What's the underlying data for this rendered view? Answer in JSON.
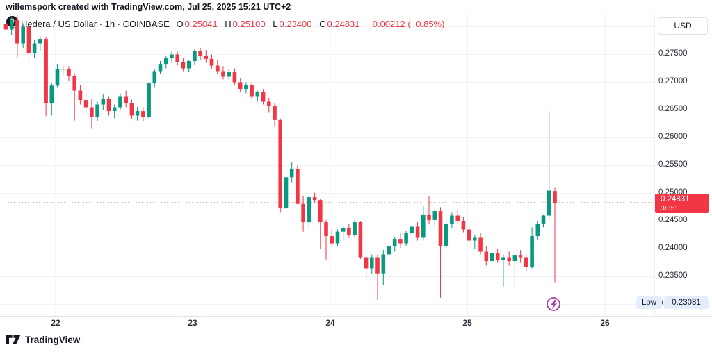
{
  "attribution": "willemspork created with TradingView.com, Jul 25, 2025 15:21 UTC+2",
  "legend": {
    "symbol_title": "Hedera / US Dollar · 1h · COINBASE",
    "ohlc": [
      {
        "label": "O",
        "value": "0.25041"
      },
      {
        "label": "H",
        "value": "0.25100"
      },
      {
        "label": "L",
        "value": "0.23400"
      },
      {
        "label": "C",
        "value": "0.24831"
      }
    ],
    "change": "−0.00212 (−0.85%)",
    "symbol_logo_glyph": "ℏ"
  },
  "price_axis": {
    "currency_label": "USD",
    "ticks": [
      "0.27500",
      "0.27000",
      "0.26500",
      "0.26000",
      "0.25500",
      "0.25000",
      "0.24500",
      "0.24000",
      "0.23500",
      "0.23000"
    ],
    "last_price_badge": {
      "price": "0.24831",
      "countdown": "38:51"
    },
    "low_marker": {
      "label": "Low",
      "value": "0.23081"
    }
  },
  "time_axis": {
    "labels": [
      "22",
      "23",
      "24",
      "25",
      "26"
    ]
  },
  "footer": {
    "logo_text": "TradingView"
  },
  "icons": {
    "flash_icon": "lightning-bolt-in-circle",
    "tv_logo": "tradingview-mark"
  },
  "colors": {
    "up": "#089981",
    "down": "#F23645",
    "badge_bg": "#F23645",
    "price_line": "#F23645",
    "grid": "#f0f2f6",
    "axis_border": "#e0e3eb",
    "axis_text": "#2a2e39",
    "low_chip_bg": "#e3edfb",
    "flash": "#AB3FAB"
  },
  "chart_data": {
    "type": "candlestick",
    "symbol": "Hedera / US Dollar",
    "interval": "1h",
    "exchange": "COINBASE",
    "title": "Hedera / US Dollar · 1h · COINBASE",
    "last_bar": {
      "open": 0.25041,
      "high": 0.251,
      "low": 0.234,
      "close": 0.24831,
      "change": -0.00212,
      "change_pct": -0.85
    },
    "current_price": 0.24831,
    "session_low": 0.23081,
    "ylim": [
      0.2285,
      0.283
    ],
    "y_ticks": [
      0.23,
      0.235,
      0.24,
      0.245,
      0.25,
      0.255,
      0.26,
      0.265,
      0.27,
      0.275,
      0.28
    ],
    "x_day_labels": [
      "22",
      "23",
      "24",
      "25",
      "26"
    ],
    "first_bar_time": "Jul 21 15:00",
    "legend_position": "top-left",
    "grid": true,
    "candles": [
      [
        0.2805,
        0.2816,
        0.279,
        0.2795
      ],
      [
        0.2795,
        0.2815,
        0.2785,
        0.2812
      ],
      [
        0.2812,
        0.282,
        0.2745,
        0.277
      ],
      [
        0.277,
        0.2806,
        0.2762,
        0.28
      ],
      [
        0.28,
        0.2806,
        0.2735,
        0.2752
      ],
      [
        0.2752,
        0.2776,
        0.2743,
        0.277
      ],
      [
        0.277,
        0.2783,
        0.2756,
        0.2778
      ],
      [
        0.2778,
        0.2782,
        0.2639,
        0.2663
      ],
      [
        0.2663,
        0.2698,
        0.264,
        0.2694
      ],
      [
        0.2694,
        0.2733,
        0.269,
        0.2723
      ],
      [
        0.2723,
        0.2731,
        0.2713,
        0.2724
      ],
      [
        0.2724,
        0.2729,
        0.2702,
        0.2711
      ],
      [
        0.2711,
        0.2716,
        0.2631,
        0.2685
      ],
      [
        0.2685,
        0.2695,
        0.266,
        0.2668
      ],
      [
        0.2668,
        0.268,
        0.2645,
        0.2655
      ],
      [
        0.2655,
        0.267,
        0.2616,
        0.2638
      ],
      [
        0.2638,
        0.2665,
        0.263,
        0.266
      ],
      [
        0.266,
        0.2678,
        0.265,
        0.267
      ],
      [
        0.267,
        0.2675,
        0.264,
        0.2648
      ],
      [
        0.2648,
        0.266,
        0.2635,
        0.2655
      ],
      [
        0.2655,
        0.268,
        0.265,
        0.2675
      ],
      [
        0.2675,
        0.2685,
        0.2655,
        0.2662
      ],
      [
        0.2662,
        0.2669,
        0.2634,
        0.264
      ],
      [
        0.264,
        0.2656,
        0.2631,
        0.2648
      ],
      [
        0.2648,
        0.2655,
        0.263,
        0.2637
      ],
      [
        0.2637,
        0.27,
        0.2635,
        0.2698
      ],
      [
        0.2698,
        0.2724,
        0.269,
        0.272
      ],
      [
        0.272,
        0.2738,
        0.2715,
        0.2733
      ],
      [
        0.2733,
        0.2748,
        0.2725,
        0.2743
      ],
      [
        0.2743,
        0.2755,
        0.2735,
        0.275
      ],
      [
        0.275,
        0.2755,
        0.273,
        0.2736
      ],
      [
        0.2736,
        0.2743,
        0.272,
        0.2725
      ],
      [
        0.2725,
        0.274,
        0.2718,
        0.2738
      ],
      [
        0.2738,
        0.276,
        0.2732,
        0.2756
      ],
      [
        0.2756,
        0.2762,
        0.274,
        0.2748
      ],
      [
        0.2748,
        0.2758,
        0.2735,
        0.2742
      ],
      [
        0.2742,
        0.275,
        0.2725,
        0.273
      ],
      [
        0.273,
        0.274,
        0.2715,
        0.272
      ],
      [
        0.272,
        0.2729,
        0.2705,
        0.271
      ],
      [
        0.271,
        0.2724,
        0.2705,
        0.2718
      ],
      [
        0.2718,
        0.2725,
        0.2695,
        0.27
      ],
      [
        0.27,
        0.2708,
        0.2682,
        0.2688
      ],
      [
        0.2688,
        0.27,
        0.268,
        0.2695
      ],
      [
        0.2695,
        0.27,
        0.267,
        0.2675
      ],
      [
        0.2675,
        0.2685,
        0.2665,
        0.2682
      ],
      [
        0.2682,
        0.2688,
        0.266,
        0.2665
      ],
      [
        0.2665,
        0.2672,
        0.2645,
        0.2658
      ],
      [
        0.2658,
        0.2662,
        0.262,
        0.2632
      ],
      [
        0.2632,
        0.2635,
        0.2465,
        0.2473
      ],
      [
        0.2473,
        0.2548,
        0.246,
        0.2529
      ],
      [
        0.2529,
        0.2556,
        0.252,
        0.2544
      ],
      [
        0.2544,
        0.255,
        0.248,
        0.2481
      ],
      [
        0.2481,
        0.2495,
        0.2431,
        0.2448
      ],
      [
        0.2448,
        0.2496,
        0.244,
        0.2493
      ],
      [
        0.2493,
        0.2501,
        0.2483,
        0.2488
      ],
      [
        0.2488,
        0.249,
        0.24,
        0.2448
      ],
      [
        0.2448,
        0.2452,
        0.2381,
        0.2423
      ],
      [
        0.2423,
        0.2435,
        0.2405,
        0.241
      ],
      [
        0.241,
        0.2435,
        0.2405,
        0.2431
      ],
      [
        0.2431,
        0.2442,
        0.2415,
        0.2438
      ],
      [
        0.2438,
        0.2445,
        0.242,
        0.2425
      ],
      [
        0.2425,
        0.2452,
        0.242,
        0.2448
      ],
      [
        0.2448,
        0.245,
        0.2382,
        0.2385
      ],
      [
        0.2385,
        0.239,
        0.2344,
        0.2365
      ],
      [
        0.2365,
        0.239,
        0.2355,
        0.2385
      ],
      [
        0.2385,
        0.239,
        0.23081,
        0.2356
      ],
      [
        0.2356,
        0.2398,
        0.2335,
        0.239
      ],
      [
        0.239,
        0.241,
        0.237,
        0.2405
      ],
      [
        0.2405,
        0.2422,
        0.2395,
        0.2418
      ],
      [
        0.2418,
        0.2428,
        0.2402,
        0.241
      ],
      [
        0.241,
        0.2433,
        0.2405,
        0.2428
      ],
      [
        0.2428,
        0.2445,
        0.2415,
        0.244
      ],
      [
        0.244,
        0.2448,
        0.2415,
        0.242
      ],
      [
        0.242,
        0.2478,
        0.2415,
        0.2462
      ],
      [
        0.2462,
        0.2495,
        0.2445,
        0.2452
      ],
      [
        0.2452,
        0.2472,
        0.2442,
        0.2468
      ],
      [
        0.2468,
        0.2475,
        0.2312,
        0.2405
      ],
      [
        0.2405,
        0.245,
        0.24,
        0.2445
      ],
      [
        0.2445,
        0.2465,
        0.2438,
        0.246
      ],
      [
        0.246,
        0.247,
        0.2445,
        0.245
      ],
      [
        0.245,
        0.2458,
        0.243,
        0.2435
      ],
      [
        0.2435,
        0.2442,
        0.241,
        0.2415
      ],
      [
        0.2415,
        0.2425,
        0.24,
        0.242
      ],
      [
        0.242,
        0.2428,
        0.239,
        0.2395
      ],
      [
        0.2395,
        0.2405,
        0.237,
        0.2378
      ],
      [
        0.2378,
        0.2398,
        0.2365,
        0.2392
      ],
      [
        0.2392,
        0.24,
        0.2375,
        0.238
      ],
      [
        0.238,
        0.239,
        0.2331,
        0.2385
      ],
      [
        0.2385,
        0.2395,
        0.237,
        0.2378
      ],
      [
        0.2378,
        0.239,
        0.233,
        0.2388
      ],
      [
        0.2388,
        0.2398,
        0.2375,
        0.2385
      ],
      [
        0.2385,
        0.239,
        0.236,
        0.2368
      ],
      [
        0.2368,
        0.2439,
        0.2365,
        0.2423
      ],
      [
        0.2423,
        0.245,
        0.2417,
        0.2445
      ],
      [
        0.2445,
        0.2462,
        0.2439,
        0.246
      ],
      [
        0.246,
        0.2648,
        0.2455,
        0.2505
      ],
      [
        0.25041,
        0.251,
        0.234,
        0.24831
      ]
    ]
  }
}
